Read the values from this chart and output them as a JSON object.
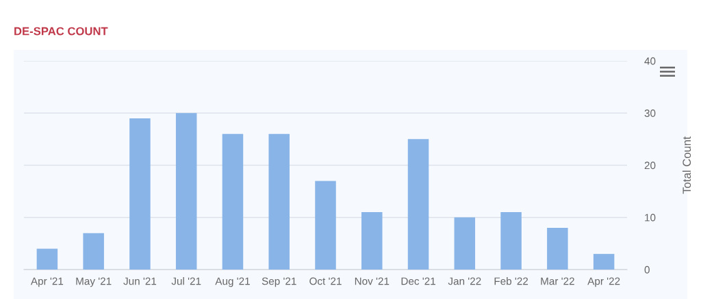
{
  "chart_data": {
    "type": "bar",
    "title": "DE-SPAC COUNT",
    "ylabel": "Total Count",
    "categories": [
      "Apr '21",
      "May '21",
      "Jun '21",
      "Jul '21",
      "Aug '21",
      "Sep '21",
      "Oct '21",
      "Nov '21",
      "Dec '21",
      "Jan '22",
      "Feb '22",
      "Mar '22",
      "Apr '22"
    ],
    "values": [
      4,
      7,
      29,
      30,
      26,
      26,
      17,
      11,
      25,
      10,
      11,
      8,
      3
    ],
    "color": "#88b4e7",
    "ylim": [
      0,
      40
    ],
    "yticks": [
      0,
      10,
      20,
      30,
      40
    ],
    "grid": "y",
    "legend": false
  }
}
